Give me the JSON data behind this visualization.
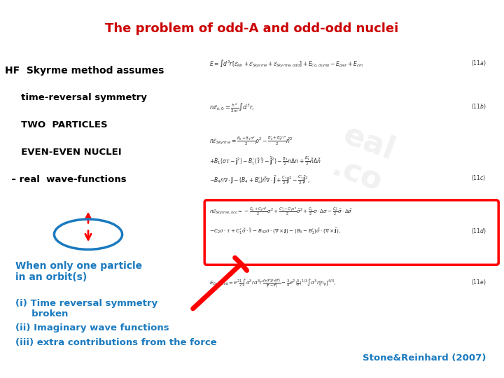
{
  "title": "The problem of odd-A and odd-odd nuclei",
  "title_color": "#cc0000",
  "title_fontsize": 13,
  "bg_color": "#ffffff",
  "left_text_color": "#000000",
  "blue_text_color": "#1a7abf",
  "hf_lines": [
    "HF  Skyrme method assumes",
    "     time-reversal symmetry",
    "     TWO  PARTICLES",
    "     EVEN-EVEN NUCLEI",
    "  – real  wave-functions"
  ],
  "when_text": "When only one particle\nin an orbit(s)",
  "items_text_1": "(i) Time reversal symmetry\n     broken",
  "items_text_2": "(ii) Imaginary wave functions",
  "items_text_3": "(iii) extra contributions from the force",
  "stone_text": "Stone&Reinhard (2007)",
  "eq_color": "#333333"
}
